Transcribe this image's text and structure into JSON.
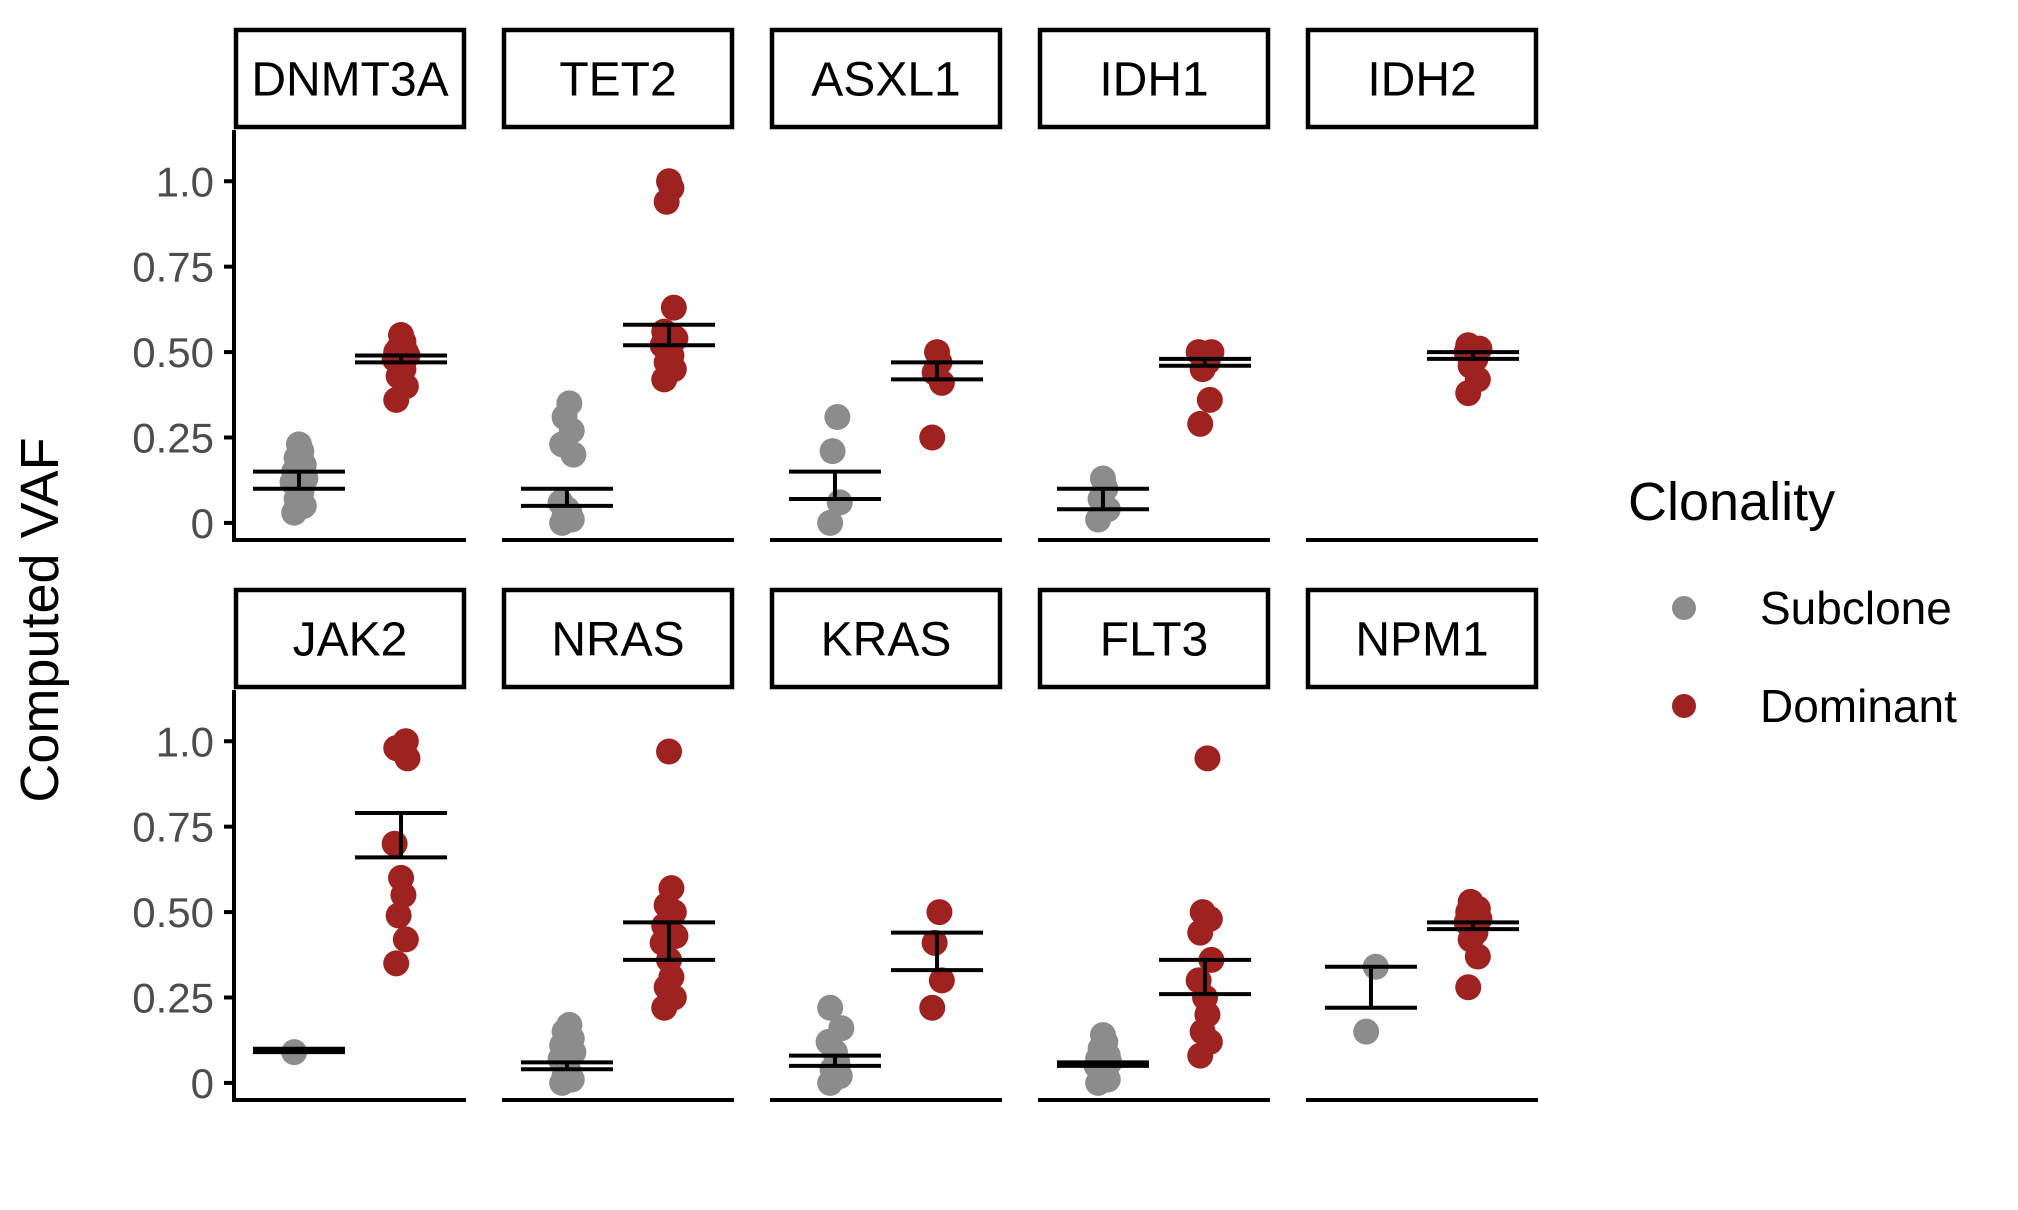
{
  "chart_data": {
    "type": "scatter",
    "ylabel": "Computed VAF",
    "xlabel": "",
    "ylim": [
      -0.05,
      1.15
    ],
    "yticks": [
      0,
      0.25,
      0.5,
      0.75,
      1.0
    ],
    "ytick_labels": [
      "0",
      "0.25",
      "0.50",
      "0.75",
      "1.0"
    ],
    "grid": false,
    "legend": {
      "title": "Clonality",
      "position": "right",
      "entries": [
        {
          "label": "Subclone",
          "color": "#8c8c8c"
        },
        {
          "label": "Dominant",
          "color": "#9e2220"
        }
      ]
    },
    "groups": [
      "Subclone",
      "Dominant"
    ],
    "panels": [
      {
        "gene": "DNMT3A",
        "Subclone": {
          "points": [
            0.03,
            0.05,
            0.07,
            0.09,
            0.1,
            0.12,
            0.13,
            0.15,
            0.17,
            0.19,
            0.21,
            0.23
          ],
          "ci": [
            0.1,
            0.15
          ]
        },
        "Dominant": {
          "points": [
            0.36,
            0.4,
            0.43,
            0.45,
            0.47,
            0.48,
            0.49,
            0.5,
            0.5,
            0.51,
            0.53,
            0.55
          ],
          "ci": [
            0.47,
            0.49
          ]
        }
      },
      {
        "gene": "TET2",
        "Subclone": {
          "points": [
            0.0,
            0.01,
            0.02,
            0.03,
            0.04,
            0.06,
            0.2,
            0.23,
            0.27,
            0.31,
            0.35
          ],
          "ci": [
            0.05,
            0.1
          ]
        },
        "Dominant": {
          "points": [
            0.42,
            0.45,
            0.47,
            0.49,
            0.5,
            0.52,
            0.54,
            0.56,
            0.63,
            0.94,
            0.98,
            1.0
          ],
          "ci": [
            0.52,
            0.58
          ]
        }
      },
      {
        "gene": "ASXL1",
        "Subclone": {
          "points": [
            0.0,
            0.06,
            0.21,
            0.31
          ],
          "ci": [
            0.07,
            0.15
          ]
        },
        "Dominant": {
          "points": [
            0.25,
            0.41,
            0.44,
            0.47,
            0.5
          ],
          "ci": [
            0.42,
            0.47
          ]
        }
      },
      {
        "gene": "IDH1",
        "Subclone": {
          "points": [
            0.01,
            0.04,
            0.07,
            0.1,
            0.13
          ],
          "ci": [
            0.04,
            0.1
          ]
        },
        "Dominant": {
          "points": [
            0.29,
            0.36,
            0.45,
            0.47,
            0.49,
            0.5,
            0.5
          ],
          "ci": [
            0.46,
            0.48
          ]
        }
      },
      {
        "gene": "IDH2",
        "Subclone": {
          "points": [],
          "ci": null
        },
        "Dominant": {
          "points": [
            0.38,
            0.42,
            0.46,
            0.48,
            0.49,
            0.5,
            0.51,
            0.52
          ],
          "ci": [
            0.48,
            0.5
          ]
        }
      },
      {
        "gene": "JAK2",
        "Subclone": {
          "points": [
            0.09
          ],
          "ci": [
            0.09,
            0.1
          ]
        },
        "Dominant": {
          "points": [
            0.35,
            0.42,
            0.49,
            0.55,
            0.6,
            0.7,
            0.95,
            0.98,
            1.0
          ],
          "ci": [
            0.66,
            0.79
          ]
        }
      },
      {
        "gene": "NRAS",
        "Subclone": {
          "points": [
            0.0,
            0.01,
            0.02,
            0.03,
            0.05,
            0.07,
            0.09,
            0.11,
            0.13,
            0.15,
            0.17
          ],
          "ci": [
            0.04,
            0.06
          ]
        },
        "Dominant": {
          "points": [
            0.22,
            0.25,
            0.28,
            0.31,
            0.36,
            0.41,
            0.43,
            0.46,
            0.5,
            0.52,
            0.57,
            0.97
          ],
          "ci": [
            0.36,
            0.47
          ]
        }
      },
      {
        "gene": "KRAS",
        "Subclone": {
          "points": [
            0.0,
            0.02,
            0.04,
            0.06,
            0.09,
            0.12,
            0.16,
            0.22
          ],
          "ci": [
            0.05,
            0.08
          ]
        },
        "Dominant": {
          "points": [
            0.22,
            0.3,
            0.41,
            0.5
          ],
          "ci": [
            0.33,
            0.44
          ]
        }
      },
      {
        "gene": "FLT3",
        "Subclone": {
          "points": [
            0.0,
            0.01,
            0.02,
            0.03,
            0.04,
            0.05,
            0.06,
            0.07,
            0.08,
            0.1,
            0.12,
            0.14
          ],
          "ci": [
            0.05,
            0.06
          ]
        },
        "Dominant": {
          "points": [
            0.08,
            0.12,
            0.15,
            0.2,
            0.25,
            0.3,
            0.36,
            0.44,
            0.48,
            0.5,
            0.95
          ],
          "ci": [
            0.26,
            0.36
          ]
        }
      },
      {
        "gene": "NPM1",
        "Subclone": {
          "points": [
            0.15,
            0.34
          ],
          "ci": [
            0.22,
            0.34
          ]
        },
        "Dominant": {
          "points": [
            0.28,
            0.37,
            0.42,
            0.44,
            0.46,
            0.47,
            0.48,
            0.5,
            0.51,
            0.53
          ],
          "ci": [
            0.45,
            0.47
          ]
        }
      }
    ]
  }
}
